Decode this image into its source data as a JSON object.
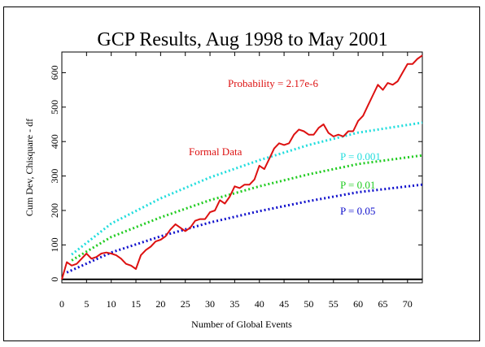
{
  "chart_data": {
    "type": "line",
    "title": "GCP Results, Aug 1998 to May 2001",
    "xlabel": "Number of Global Events",
    "ylabel": "Cum Dev, Chisquare - df",
    "xlim": [
      0,
      73
    ],
    "ylim": [
      -10,
      660
    ],
    "x_ticks": [
      0,
      5,
      10,
      15,
      20,
      25,
      30,
      35,
      40,
      45,
      50,
      55,
      60,
      65,
      70
    ],
    "y_ticks": [
      0,
      100,
      200,
      300,
      400,
      500,
      600
    ],
    "annotations": [
      {
        "text": "Probability = 2.17e-6",
        "color": "#dd1111"
      },
      {
        "text": "Formal Data",
        "color": "#dd1111"
      },
      {
        "text": "P = 0.001",
        "color": "#22dddd"
      },
      {
        "text": "P = 0.01",
        "color": "#22cc22"
      },
      {
        "text": "P = 0.05",
        "color": "#1111cc"
      }
    ],
    "data_series": {
      "name": "Formal Data",
      "color": "#dd1111",
      "x": [
        0,
        1,
        2,
        3,
        4,
        5,
        6,
        7,
        8,
        9,
        10,
        11,
        12,
        13,
        14,
        15,
        16,
        17,
        18,
        19,
        20,
        21,
        22,
        23,
        24,
        25,
        26,
        27,
        28,
        29,
        30,
        31,
        32,
        33,
        34,
        35,
        36,
        37,
        38,
        39,
        40,
        41,
        42,
        43,
        44,
        45,
        46,
        47,
        48,
        49,
        50,
        51,
        52,
        53,
        54,
        55,
        56,
        57,
        58,
        59,
        60,
        61,
        62,
        63,
        64,
        65,
        66,
        67,
        68,
        69,
        70,
        71,
        72,
        73
      ],
      "y": [
        0,
        50,
        40,
        45,
        60,
        75,
        60,
        65,
        75,
        78,
        75,
        70,
        60,
        45,
        40,
        30,
        70,
        85,
        95,
        110,
        115,
        125,
        145,
        160,
        150,
        140,
        150,
        170,
        175,
        175,
        195,
        200,
        230,
        220,
        240,
        270,
        265,
        275,
        275,
        290,
        330,
        320,
        350,
        380,
        395,
        390,
        395,
        420,
        435,
        430,
        420,
        420,
        440,
        450,
        425,
        415,
        420,
        415,
        430,
        430,
        460,
        475,
        505,
        535,
        565,
        550,
        570,
        565,
        575,
        600,
        625,
        625,
        640,
        650
      ]
    },
    "thresholds": [
      {
        "label": "P = 0.001",
        "color": "#22dddd",
        "x": [
          2,
          10,
          20,
          30,
          40,
          50,
          60,
          73
        ],
        "y": [
          72,
          162,
          235,
          296,
          346,
          390,
          426,
          455
        ]
      },
      {
        "label": "P = 0.01",
        "color": "#22cc22",
        "x": [
          2,
          10,
          20,
          30,
          40,
          50,
          60,
          73
        ],
        "y": [
          55,
          123,
          180,
          230,
          270,
          305,
          335,
          360
        ]
      },
      {
        "label": "P = 0.05",
        "color": "#1111cc",
        "x": [
          1,
          10,
          20,
          30,
          40,
          50,
          60,
          73
        ],
        "y": [
          20,
          78,
          125,
          165,
          198,
          227,
          253,
          275
        ]
      }
    ],
    "baseline": 0,
    "grid": false,
    "legend": "none"
  }
}
